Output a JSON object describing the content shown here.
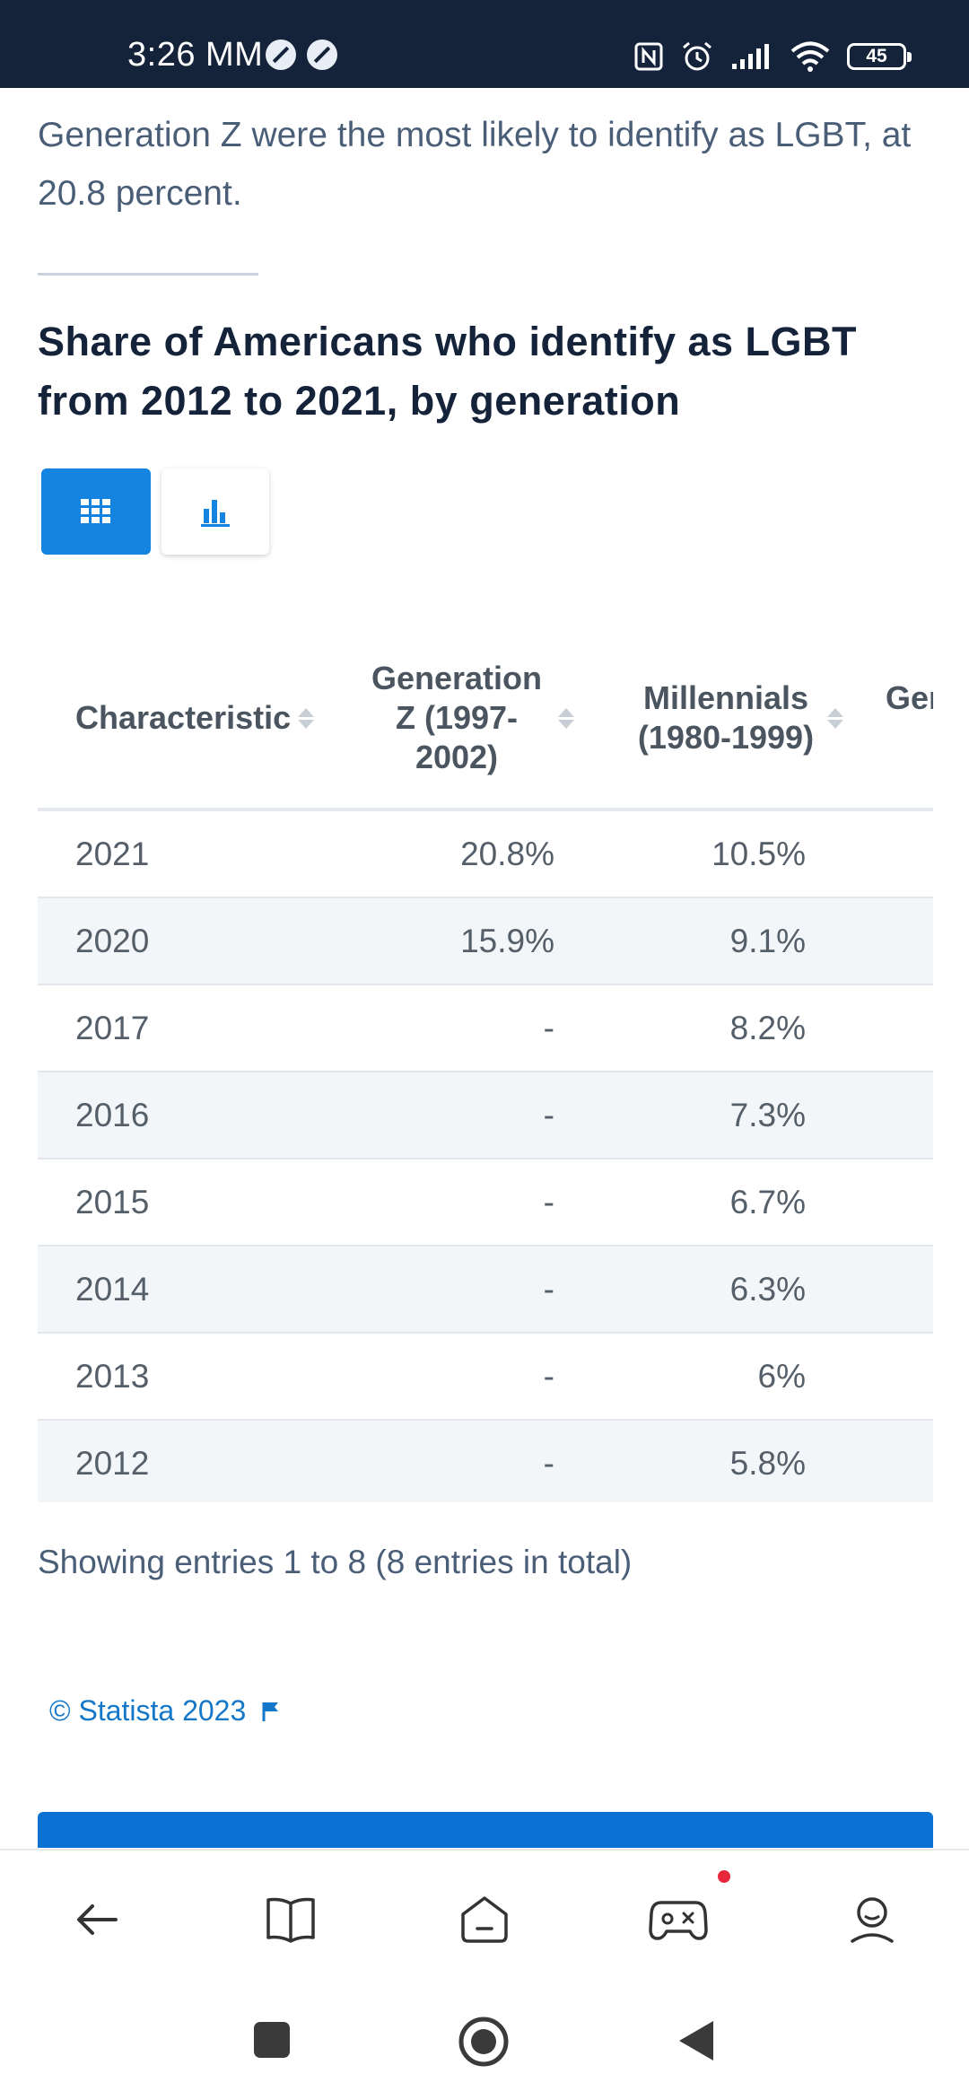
{
  "status_bar": {
    "time": "3:26",
    "carrier": "MM",
    "battery": "45"
  },
  "intro": {
    "text": "Generation Z were the most likely to identify as LGBT, at 20.8 percent."
  },
  "chart": {
    "title": "Share of Americans who identify as LGBT from 2012 to 2021, by generation"
  },
  "toggle": {
    "table_icon": "table-grid-icon",
    "chart_icon": "bar-chart-icon"
  },
  "table": {
    "headers": {
      "characteristic": "Characteristic",
      "gen_z": "Generation Z (1997-2002)",
      "millennials": "Millennials (1980-1999)",
      "gen_x": "Generation X"
    },
    "rows": [
      {
        "year": "2021",
        "gen_z": "20.8%",
        "millennials": "10.5%"
      },
      {
        "year": "2020",
        "gen_z": "15.9%",
        "millennials": "9.1%"
      },
      {
        "year": "2017",
        "gen_z": "-",
        "millennials": "8.2%"
      },
      {
        "year": "2016",
        "gen_z": "-",
        "millennials": "7.3%"
      },
      {
        "year": "2015",
        "gen_z": "-",
        "millennials": "6.7%"
      },
      {
        "year": "2014",
        "gen_z": "-",
        "millennials": "6.3%"
      },
      {
        "year": "2013",
        "gen_z": "-",
        "millennials": "6%"
      },
      {
        "year": "2012",
        "gen_z": "-",
        "millennials": "5.8%"
      }
    ]
  },
  "entries_info": "Showing entries 1 to 8 (8 entries in total)",
  "copyright": "© Statista 2023",
  "colors": {
    "accent": "#1583e0",
    "status_bar": "#14233a",
    "badge": "#e6283a"
  }
}
